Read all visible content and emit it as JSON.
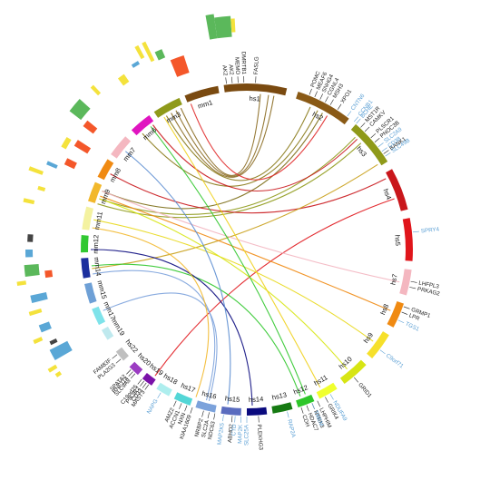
{
  "colors": {
    "human_gene_label": "#222222",
    "mouse_gene_label": "#5a9fd4",
    "track_yellow": "#f4e23c",
    "track_green": "#5bb85b",
    "track_red": "#f4572a",
    "track_blue": "#5aa7d6",
    "track_dark": "#444444"
  },
  "chromosomes": [
    {
      "label": "hs1",
      "a0": -8,
      "a1": 14,
      "color": "#7a4a10"
    },
    {
      "label": "hs2",
      "a0": 18,
      "a1": 38,
      "color": "#8a5a16"
    },
    {
      "label": "hs3",
      "a0": 41,
      "a1": 58,
      "color": "#8f9a1a"
    },
    {
      "label": "hs4",
      "a0": 61,
      "a1": 76,
      "color": "#c9161b"
    },
    {
      "label": "hs5",
      "a0": 79,
      "a1": 94,
      "color": "#e0151b"
    },
    {
      "label": "hs7",
      "a0": 97,
      "a1": 106,
      "color": "#f4b7c0"
    },
    {
      "label": "hs8",
      "a0": 109,
      "a1": 118,
      "color": "#f08a12"
    },
    {
      "label": "hs9",
      "a0": 121,
      "a1": 131,
      "color": "#f6e02a"
    },
    {
      "label": "hs10",
      "a0": 134,
      "a1": 144,
      "color": "#d7e514"
    },
    {
      "label": "hs11",
      "a0": 147,
      "a1": 154,
      "color": "#f0ff2e"
    },
    {
      "label": "hs12",
      "a0": 156,
      "a1": 162,
      "color": "#2ec62a"
    },
    {
      "label": "hs13",
      "a0": 164,
      "a1": 171,
      "color": "#167a12"
    },
    {
      "label": "hs14",
      "a0": 173,
      "a1": 180,
      "color": "#0a0a7e"
    },
    {
      "label": "hs15",
      "a0": 182,
      "a1": 189,
      "color": "#5a6cbf"
    },
    {
      "label": "hs16",
      "a0": 191,
      "a1": 198,
      "color": "#7ca2db"
    },
    {
      "label": "hs17",
      "a0": 200,
      "a1": 206,
      "color": "#53d6d6"
    },
    {
      "label": "hs18",
      "a0": 208,
      "a1": 213,
      "color": "#aeeeee"
    },
    {
      "label": "hs19",
      "a0": 215,
      "a1": 219,
      "color": "#7a12a8"
    },
    {
      "label": "hs20",
      "a0": 221,
      "a1": 225,
      "color": "#9b3dc2"
    },
    {
      "label": "hs22",
      "a0": 228,
      "a1": 232,
      "color": "#bfbfbf"
    },
    {
      "label": "mm19",
      "a0": 237,
      "a1": 241,
      "color": "#bfe9ee"
    },
    {
      "label": "mm17",
      "a0": 243,
      "a1": 249,
      "color": "#7fe3ea"
    },
    {
      "label": "mm15",
      "a0": 251,
      "a1": 258,
      "color": "#6ea0d6"
    },
    {
      "label": "mm14",
      "a0": 260,
      "a1": 267,
      "color": "#1c2f9e"
    },
    {
      "label": "mm12",
      "a0": 269,
      "a1": 275,
      "color": "#31c831"
    },
    {
      "label": "mm11",
      "a0": 277,
      "a1": 285,
      "color": "#f4f2a0"
    },
    {
      "label": "mm9",
      "a0": 287,
      "a1": 294,
      "color": "#f2b82c"
    },
    {
      "label": "mm8",
      "a0": 296,
      "a1": 303,
      "color": "#f08a12"
    },
    {
      "label": "mm7",
      "a0": 305,
      "a1": 313,
      "color": "#f4b7c0"
    },
    {
      "label": "mm6",
      "a0": 316,
      "a1": 324,
      "color": "#e015c0"
    },
    {
      "label": "mm3",
      "a0": 326,
      "a1": 336,
      "color": "#8f9a1a"
    },
    {
      "label": "mm1",
      "a0": 338,
      "a1": 350,
      "color": "#7a4a10"
    }
  ],
  "human_genes": [
    {
      "name": "FASLG",
      "a": 3
    },
    {
      "name": "AK2",
      "a": -7
    },
    {
      "name": "AK2",
      "a": -5
    },
    {
      "name": "MEMO",
      "a": -3
    },
    {
      "name": "DMRTB1",
      "a": -1
    },
    {
      "name": "POMC",
      "a": 22
    },
    {
      "name": "MEAF6",
      "a": 24
    },
    {
      "name": "SNHG4",
      "a": 26
    },
    {
      "name": "CGNL4",
      "a": 28
    },
    {
      "name": "MSH3",
      "a": 30
    },
    {
      "name": "XPO1",
      "a": 33
    },
    {
      "name": "MST1R",
      "a": 43
    },
    {
      "name": "CAMKV",
      "a": 45
    },
    {
      "name": "PLSCR1",
      "a": 48
    },
    {
      "name": "PNOC3B",
      "a": 50
    },
    {
      "name": "BANK1",
      "a": 55
    },
    {
      "name": "LHFPL3",
      "a": 101
    },
    {
      "name": "PRKAG2",
      "a": 103
    },
    {
      "name": "GRMP1",
      "a": 110
    },
    {
      "name": "LPR",
      "a": 112
    },
    {
      "name": "GRID1",
      "a": 140
    },
    {
      "name": "GRIK4",
      "a": 152
    },
    {
      "name": "LHPHIM",
      "a": 155
    },
    {
      "name": "NTRK3",
      "a": 157
    },
    {
      "name": "HDAC7",
      "a": 159
    },
    {
      "name": "CDH",
      "a": 161
    },
    {
      "name": "PLEKHG3",
      "a": 176
    },
    {
      "name": "ABHD2",
      "a": 185
    },
    {
      "name": "NDC63",
      "a": 191
    },
    {
      "name": "SLC2A",
      "a": 193
    },
    {
      "name": "NRBP2",
      "a": 195
    },
    {
      "name": "KIAA1609",
      "a": 199
    },
    {
      "name": "NXN",
      "a": 201
    },
    {
      "name": "ACCN1",
      "a": 203
    },
    {
      "name": "AMZ2",
      "a": 205
    },
    {
      "name": "MAST3",
      "a": 216
    },
    {
      "name": "PIK3R2",
      "a": 218
    },
    {
      "name": "CD33",
      "a": 217
    },
    {
      "name": "C19orf25",
      "a": 219
    },
    {
      "name": "SLC9A8",
      "a": 222
    },
    {
      "name": "RNF114",
      "a": 223
    },
    {
      "name": "SPATA2",
      "a": 224
    },
    {
      "name": "PLA2G3",
      "a": 229
    },
    {
      "name": "FAM83F",
      "a": 231
    }
  ],
  "mouse_genes": [
    {
      "name": "CNTN6",
      "a": 37
    },
    {
      "name": "CCNB1",
      "a": 40
    },
    {
      "name": "BCHE",
      "a": 41
    },
    {
      "name": "SLC2A9",
      "a": 52
    },
    {
      "name": "CD38",
      "a": 54
    },
    {
      "name": "SLC49B",
      "a": 56
    },
    {
      "name": "SPRY4",
      "a": 84
    },
    {
      "name": "TGS1",
      "a": 115
    },
    {
      "name": "C9orf71",
      "a": 127
    },
    {
      "name": "NDUFA9",
      "a": 150
    },
    {
      "name": "TMEM",
      "a": 157
    },
    {
      "name": "RAP2A",
      "a": 166
    },
    {
      "name": "SLC25A",
      "a": 180
    },
    {
      "name": "MAP2K",
      "a": 182
    },
    {
      "name": "CTD",
      "a": 184
    },
    {
      "name": "MAP2K5",
      "a": 188
    },
    {
      "name": "NAPG",
      "a": 211
    }
  ],
  "links": [
    {
      "from": 5,
      "to": 335,
      "color": "#8a6a20"
    },
    {
      "from": 8,
      "to": 333,
      "color": "#8a6a20"
    },
    {
      "from": 10,
      "to": 331,
      "color": "#8a6a20"
    },
    {
      "from": 24,
      "to": 329,
      "color": "#8a7a18"
    },
    {
      "from": 27,
      "to": 318,
      "color": "#8a7a18"
    },
    {
      "from": 29,
      "to": 292,
      "color": "#7a6a12"
    },
    {
      "from": 31,
      "to": 339,
      "color": "#e02a2a"
    },
    {
      "from": 44,
      "to": 289,
      "color": "#8f9a1a"
    },
    {
      "from": 47,
      "to": 287,
      "color": "#8f9a1a"
    },
    {
      "from": 45,
      "to": 323,
      "color": "#c9161b"
    },
    {
      "from": 63,
      "to": 299,
      "color": "#c9161b"
    },
    {
      "from": 71,
      "to": 216,
      "color": "#e0151b"
    },
    {
      "from": 57,
      "to": 263,
      "color": "#c9a01a"
    },
    {
      "from": 102,
      "to": 292,
      "color": "#f3b5c0"
    },
    {
      "from": 113,
      "to": 290,
      "color": "#f08a12"
    },
    {
      "from": 126,
      "to": 281,
      "color": "#e8d81a"
    },
    {
      "from": 140,
      "to": 289,
      "color": "#d7e514"
    },
    {
      "from": 152,
      "to": 328,
      "color": "#f0d01a"
    },
    {
      "from": 158,
      "to": 322,
      "color": "#2ec62a"
    },
    {
      "from": 160,
      "to": 264,
      "color": "#2ec62a"
    },
    {
      "from": 178,
      "to": 270,
      "color": "#0a0a7e"
    },
    {
      "from": 187,
      "to": 309,
      "color": "#5a8cd0"
    },
    {
      "from": 195,
      "to": 261,
      "color": "#7ca2db"
    },
    {
      "from": 194,
      "to": 247,
      "color": "#7ca2db"
    },
    {
      "from": 199,
      "to": 278,
      "color": "#f2b82c"
    }
  ],
  "outer_tracks": [
    {
      "r1": 235,
      "r2": 262,
      "a0": 350,
      "a1": 352,
      "color": "#5bb85b"
    },
    {
      "r1": 235,
      "r2": 258,
      "a0": 352,
      "a1": 356,
      "color": "#5bb85b"
    },
    {
      "r1": 240,
      "r2": 255,
      "a0": 356,
      "a1": 357,
      "color": "#f4e23c"
    },
    {
      "r1": 205,
      "r2": 225,
      "a0": 338,
      "a1": 342,
      "color": "#f4572a"
    },
    {
      "r1": 230,
      "r2": 240,
      "a0": 335,
      "a1": 337,
      "color": "#5bb85b"
    },
    {
      "r1": 232,
      "r2": 255,
      "a0": 333,
      "a1": 334,
      "color": "#f4e23c"
    },
    {
      "r1": 240,
      "r2": 255,
      "a0": 331,
      "a1": 332,
      "color": "#f4e23c"
    },
    {
      "r1": 236,
      "r2": 240,
      "a0": 328,
      "a1": 330,
      "color": "#5aa7d6"
    },
    {
      "r1": 232,
      "r2": 248,
      "a0": 308,
      "a1": 312,
      "color": "#5bb85b"
    },
    {
      "r1": 212,
      "r2": 226,
      "a0": 307,
      "a1": 309,
      "color": "#f4572a"
    },
    {
      "r1": 205,
      "r2": 222,
      "a0": 301,
      "a1": 303,
      "color": "#f4572a"
    },
    {
      "r1": 228,
      "r2": 234,
      "a0": 299,
      "a1": 302,
      "color": "#f4e23c"
    },
    {
      "r1": 210,
      "r2": 222,
      "a0": 295,
      "a1": 297,
      "color": "#f4572a"
    },
    {
      "r1": 228,
      "r2": 240,
      "a0": 293,
      "a1": 294,
      "color": "#5aa7d6"
    },
    {
      "r1": 240,
      "r2": 256,
      "a0": 290,
      "a1": 291,
      "color": "#f4e23c"
    },
    {
      "r1": 232,
      "r2": 240,
      "a0": 286,
      "a1": 287,
      "color": "#f4e23c"
    },
    {
      "r1": 240,
      "r2": 252,
      "a0": 282,
      "a1": 283,
      "color": "#f4e23c"
    },
    {
      "r1": 236,
      "r2": 242,
      "a0": 272,
      "a1": 274,
      "color": "#444444"
    },
    {
      "r1": 236,
      "r2": 244,
      "a0": 268,
      "a1": 270,
      "color": "#5aa7d6"
    },
    {
      "r1": 230,
      "r2": 246,
      "a0": 263,
      "a1": 266,
      "color": "#5bb85b"
    },
    {
      "r1": 216,
      "r2": 224,
      "a0": 262,
      "a1": 264,
      "color": "#f4572a"
    },
    {
      "r1": 246,
      "r2": 256,
      "a0": 261,
      "a1": 262,
      "color": "#f4e23c"
    },
    {
      "r1": 226,
      "r2": 244,
      "a0": 256,
      "a1": 258,
      "color": "#5aa7d6"
    },
    {
      "r1": 236,
      "r2": 250,
      "a0": 253,
      "a1": 254,
      "color": "#f4e23c"
    },
    {
      "r1": 232,
      "r2": 244,
      "a0": 248,
      "a1": 250,
      "color": "#5aa7d6"
    },
    {
      "r1": 246,
      "r2": 256,
      "a0": 246,
      "a1": 247,
      "color": "#f4e23c"
    },
    {
      "r1": 232,
      "r2": 240,
      "a0": 244,
      "a1": 245,
      "color": "#444444"
    },
    {
      "r1": 222,
      "r2": 244,
      "a0": 240,
      "a1": 243,
      "color": "#5aa7d6"
    },
    {
      "r1": 246,
      "r2": 256,
      "a0": 238,
      "a1": 239,
      "color": "#f4e23c"
    },
    {
      "r1": 246,
      "r2": 252,
      "a0": 236,
      "a1": 237,
      "color": "#f4e23c"
    },
    {
      "r1": 236,
      "r2": 248,
      "a0": 316,
      "a1": 317,
      "color": "#f4e23c"
    },
    {
      "r1": 226,
      "r2": 236,
      "a0": 323,
      "a1": 325,
      "color": "#f4e23c"
    }
  ]
}
